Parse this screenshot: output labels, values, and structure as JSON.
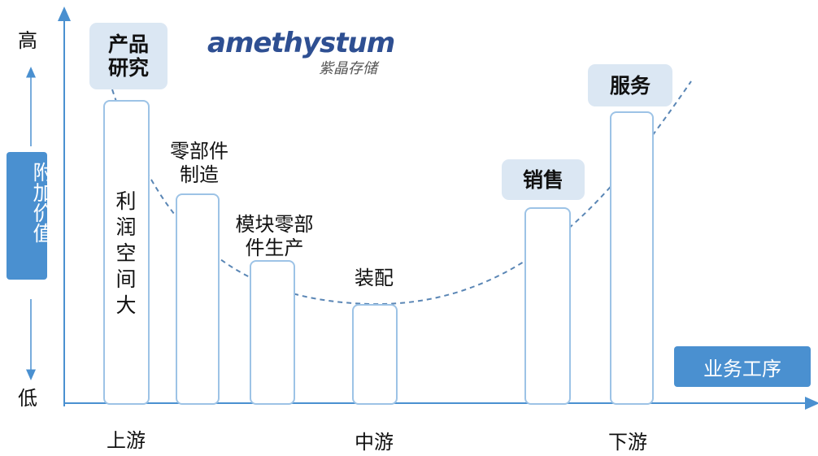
{
  "axis": {
    "y_high": "高",
    "y_low": "低",
    "y_label": "附加价值",
    "x_label": "业务工序"
  },
  "brand": {
    "name": "amethystum",
    "subtitle": "紫晶存储"
  },
  "stages": {
    "research": "产品\n研究",
    "parts": "零部件\n制造",
    "modules": "模块零部\n件生产",
    "assembly": "装配",
    "sales": "销售",
    "service": "服务"
  },
  "note": "利\n润\n空\n间\n大",
  "positions": {
    "upstream": "上游",
    "midstream": "中游",
    "downstream": "下游"
  },
  "colors": {
    "accent": "#4a90d0",
    "bar_border": "#9dc3e6",
    "tag_bg": "#dbe7f3",
    "curve": "#5a86b5",
    "brand": "#2e4f92"
  }
}
